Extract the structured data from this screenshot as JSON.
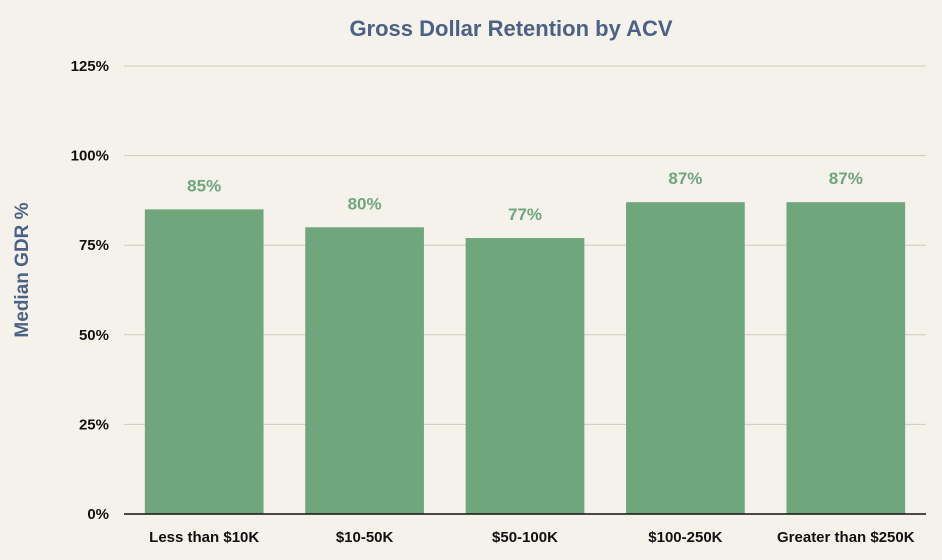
{
  "colors": {
    "bar": "#6fa67c",
    "data_label": "#6fa67c",
    "title": "#4a6285",
    "axis_title": "#4a6285",
    "grid": "#cfcac0",
    "axis_line": "#111111",
    "background": "#f5f2ec"
  },
  "chart_data": {
    "type": "bar",
    "title": "Gross Dollar Retention by ACV",
    "xlabel": "",
    "ylabel": "Median GDR %",
    "categories": [
      "Less than $10K",
      "$10-50K",
      "$50-100K",
      "$100-250K",
      "Greater than $250K"
    ],
    "values": [
      85,
      80,
      77,
      87,
      87
    ],
    "data_labels": [
      "85%",
      "80%",
      "77%",
      "87%",
      "87%"
    ],
    "ylim": [
      0,
      125
    ],
    "yticks": [
      0,
      25,
      50,
      75,
      100,
      125
    ],
    "ytick_labels": [
      "0%",
      "25%",
      "50%",
      "75%",
      "100%",
      "125%"
    ],
    "grid": true,
    "legend": "none"
  }
}
